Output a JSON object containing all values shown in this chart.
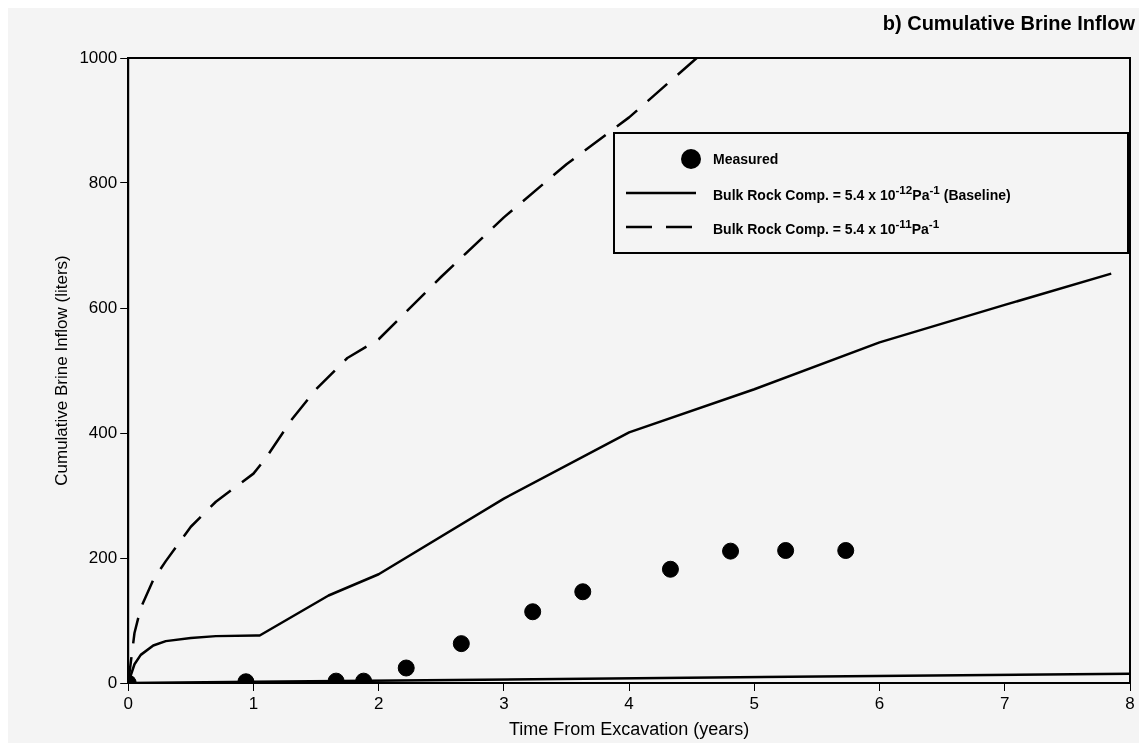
{
  "chart_data": {
    "type": "line",
    "title": "b) Cumulative Brine Inflow",
    "xlabel": "Time From Excavation (years)",
    "ylabel": "Cumulative Brine Inflow (liters)",
    "xlim": [
      0,
      8
    ],
    "ylim": [
      0,
      1000
    ],
    "xticks": [
      0,
      1,
      2,
      3,
      4,
      5,
      6,
      7,
      8
    ],
    "yticks": [
      0,
      200,
      400,
      600,
      800,
      1000
    ],
    "grid": false,
    "legend": "top right",
    "series": [
      {
        "name": "Measured",
        "type": "scatter",
        "marker": "circle",
        "color": "#000000",
        "x": [
          0,
          0.94,
          1.66,
          1.88,
          2.22,
          2.66,
          3.23,
          3.63,
          4.33,
          4.81,
          5.25,
          5.73
        ],
        "values": [
          0,
          2,
          3,
          3,
          24,
          63,
          114,
          146,
          182,
          211,
          212,
          212
        ]
      },
      {
        "name": "Bulk Rock Comp. = 5.4 x 10$^{-12}$Pa$^{-1}$ (Baseline)",
        "line_style": "solid",
        "color": "#000000",
        "x": [
          0,
          0.05,
          0.1,
          0.2,
          0.3,
          0.5,
          0.7,
          1.05,
          1.6,
          2,
          3,
          4,
          5,
          6,
          7,
          7.85
        ],
        "values": [
          0,
          30,
          45,
          60,
          67,
          72,
          75,
          76,
          140,
          174,
          295,
          401,
          470,
          545,
          605,
          655
        ]
      },
      {
        "name": "Bulk Rock Comp. = 5.4 x 10$^{-11}$Pa$^{-1}$",
        "line_style": "dashed",
        "color": "#000000",
        "x": [
          0,
          0.05,
          0.1,
          0.2,
          0.3,
          0.5,
          0.7,
          0.9,
          1,
          1.1,
          1.3,
          1.5,
          1.75,
          2,
          2.5,
          3,
          3.5,
          4,
          4.54
        ],
        "values": [
          0,
          80,
          120,
          165,
          195,
          250,
          290,
          320,
          335,
          360,
          420,
          470,
          520,
          550,
          650,
          745,
          830,
          905,
          1000
        ]
      },
      {
        "line_style": "solid",
        "color": "#000000",
        "x": [
          0,
          8
        ],
        "values": [
          0,
          15
        ]
      }
    ]
  }
}
